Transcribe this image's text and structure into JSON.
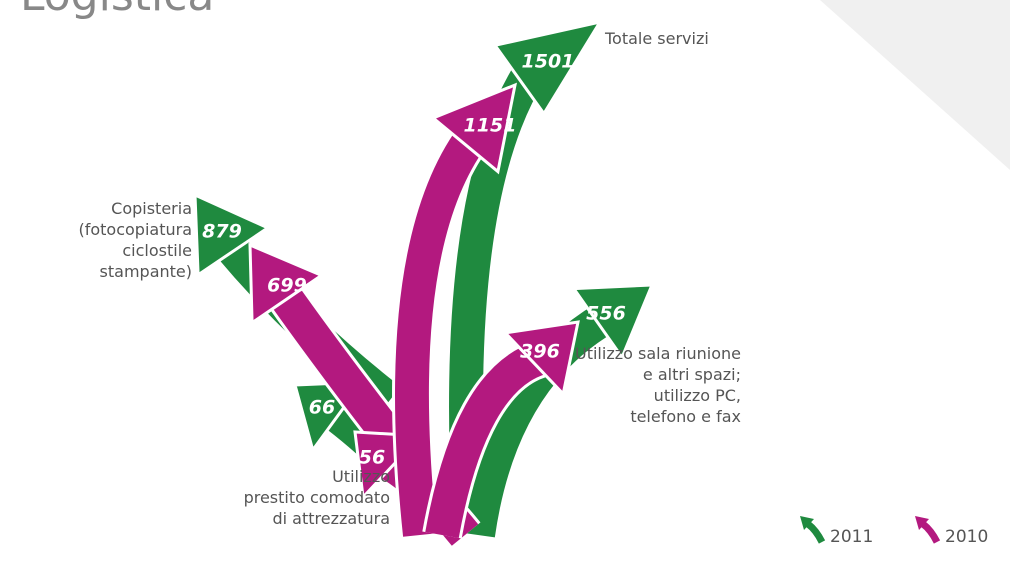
{
  "chart_data": {
    "type": "arrow",
    "title": "Logistica",
    "categories": [
      "Copisteria\n(fotocopiatura\nciclostile\nstampante)",
      "Utilizzo\nprestito comodato\ndi attrezzatura",
      "Totale servizi",
      "Utilizzo sala riunione\ne altri spazi;\nutilizzo PC,\ntelefono e fax"
    ],
    "series": [
      {
        "name": "2011",
        "color": "#1f8a3f",
        "values": [
          879,
          66,
          1501,
          556
        ]
      },
      {
        "name": "2010",
        "color": "#b3197f",
        "values": [
          699,
          56,
          1151,
          396
        ]
      }
    ]
  }
}
